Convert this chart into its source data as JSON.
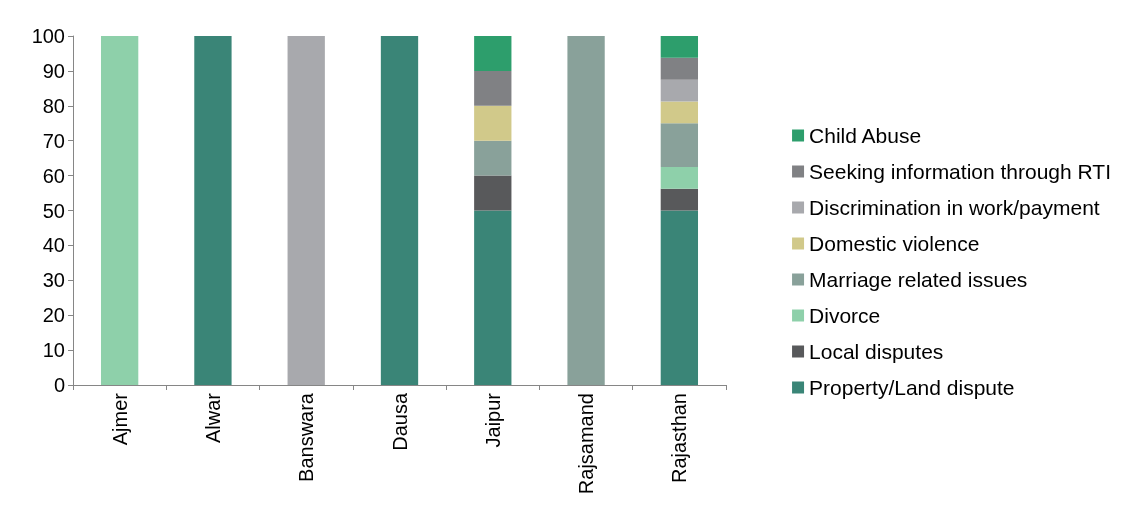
{
  "chart_data": {
    "type": "bar",
    "stacked": true,
    "categories": [
      "Ajmer",
      "Alwar",
      "Banswara",
      "Dausa",
      "Jaipur",
      "Rajsamand",
      "Rajasthan"
    ],
    "ylim": [
      0,
      100
    ],
    "yticks": [
      0,
      10,
      20,
      30,
      40,
      50,
      60,
      70,
      80,
      90,
      100
    ],
    "grid": false,
    "legend": "right",
    "series": [
      {
        "name": "Property/Land dispute",
        "color": "#3a8577",
        "values": [
          null,
          100,
          null,
          100,
          50,
          null,
          50
        ]
      },
      {
        "name": "Local disputes",
        "color": "#58595b",
        "values": [
          null,
          null,
          null,
          null,
          10,
          null,
          6.25
        ]
      },
      {
        "name": "Divorce",
        "color": "#8ed0aa",
        "values": [
          100,
          null,
          null,
          null,
          null,
          null,
          6.25
        ]
      },
      {
        "name": "Marriage related issues",
        "color": "#89a19a",
        "values": [
          null,
          null,
          null,
          null,
          10,
          100,
          12.5
        ]
      },
      {
        "name": "Domestic violence",
        "color": "#d1c98a",
        "values": [
          null,
          null,
          null,
          null,
          10,
          null,
          6.25
        ]
      },
      {
        "name": "Discrimination in work/payment",
        "color": "#a8a9ad",
        "values": [
          null,
          null,
          100,
          null,
          null,
          null,
          6.25
        ]
      },
      {
        "name": "Seeking information through RTI",
        "color": "#808184",
        "values": [
          null,
          null,
          null,
          null,
          10,
          null,
          6.25
        ]
      },
      {
        "name": "Child Abuse",
        "color": "#2d9e6c",
        "values": [
          null,
          null,
          null,
          null,
          10,
          null,
          6.25
        ]
      }
    ]
  }
}
